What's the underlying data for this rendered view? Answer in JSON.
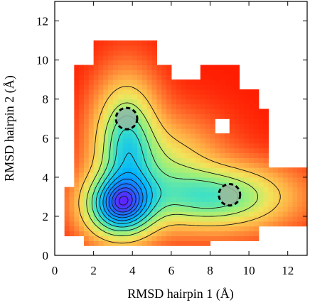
{
  "chart_data": {
    "type": "heatmap",
    "title": "",
    "xlabel": "RMSD hairpin 1 (Å)",
    "ylabel": "RMSD hairpin 2 (Å)",
    "xlim": [
      0,
      13
    ],
    "ylim": [
      0,
      13
    ],
    "xticks": [
      0,
      2,
      4,
      6,
      8,
      10,
      12
    ],
    "yticks": [
      0,
      2,
      4,
      6,
      8,
      10,
      12
    ],
    "colormap": [
      "#7f00ff",
      "#1e6bff",
      "#00b4ff",
      "#3be0c8",
      "#9cf07a",
      "#f2e45a",
      "#ffb046",
      "#ff6a2a",
      "#ff1a00"
    ],
    "grid": false,
    "legend": "none",
    "minima": [
      {
        "x": 3.7,
        "y": 7.0,
        "r": 0.55,
        "color": "#8fb8a6"
      },
      {
        "x": 9.0,
        "y": 3.1,
        "r": 0.55,
        "color": "#9ab99c"
      }
    ]
  }
}
